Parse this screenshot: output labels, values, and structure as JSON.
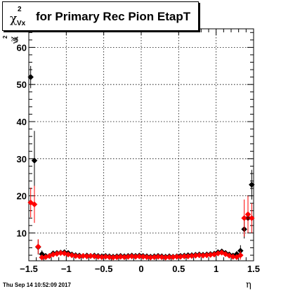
{
  "title": {
    "chi": "χ",
    "sup": "2",
    "sub": "Vx",
    "text": "for Primary Rec Pion EtapT"
  },
  "ylabel": {
    "chi": "χ",
    "sup": "2",
    "sub": "Vx"
  },
  "xlabel": "η",
  "timestamp": "Thu Sep 14 10:52:09 2017",
  "colors": {
    "black_series": "#000000",
    "red_series": "#ff0000"
  },
  "chart_data": {
    "type": "scatter",
    "xlim": [
      -1.5,
      1.5
    ],
    "ylim": [
      2.5,
      65
    ],
    "grid": true,
    "xticks": [
      {
        "value": -1.5,
        "label": "−1.5"
      },
      {
        "value": -1.0,
        "label": "−1"
      },
      {
        "value": -0.5,
        "label": "−0.5"
      },
      {
        "value": 0.0,
        "label": "0"
      },
      {
        "value": 0.5,
        "label": "0.5"
      },
      {
        "value": 1.0,
        "label": "1"
      },
      {
        "value": 1.5,
        "label": "1.5"
      }
    ],
    "yticks": [
      {
        "value": 10,
        "label": "10"
      },
      {
        "value": 20,
        "label": "20"
      },
      {
        "value": 30,
        "label": "30"
      },
      {
        "value": 40,
        "label": "40"
      },
      {
        "value": 50,
        "label": "50"
      },
      {
        "value": 60,
        "label": "60"
      }
    ],
    "series": [
      {
        "color": "#000000",
        "points": [
          {
            "x": -1.475,
            "y": 52,
            "err": 3
          },
          {
            "x": -1.425,
            "y": 29.5,
            "err": 8
          },
          {
            "x": -1.375,
            "y": 6.2,
            "err": 2
          },
          {
            "x": -1.325,
            "y": 4.3,
            "err": 1
          },
          {
            "x": -1.275,
            "y": 3.8,
            "err": 0.5
          },
          {
            "x": -1.225,
            "y": 3.8,
            "err": 0.4
          },
          {
            "x": -1.175,
            "y": 4.5,
            "err": 0.4
          },
          {
            "x": -1.125,
            "y": 4.6,
            "err": 0.4
          },
          {
            "x": -1.075,
            "y": 4.7,
            "err": 0.4
          },
          {
            "x": -1.025,
            "y": 4.8,
            "err": 0.4
          },
          {
            "x": -0.975,
            "y": 4.6,
            "err": 0.3
          },
          {
            "x": -0.925,
            "y": 4.2,
            "err": 0.3
          },
          {
            "x": -0.875,
            "y": 4.0,
            "err": 0.3
          },
          {
            "x": -0.825,
            "y": 3.9,
            "err": 0.3
          },
          {
            "x": -0.775,
            "y": 3.8,
            "err": 0.3
          },
          {
            "x": -0.725,
            "y": 3.9,
            "err": 0.3
          },
          {
            "x": -0.675,
            "y": 3.8,
            "err": 0.3
          },
          {
            "x": -0.625,
            "y": 3.9,
            "err": 0.3
          },
          {
            "x": -0.575,
            "y": 3.8,
            "err": 0.3
          },
          {
            "x": -0.525,
            "y": 3.7,
            "err": 0.3
          },
          {
            "x": -0.475,
            "y": 3.8,
            "err": 0.3
          },
          {
            "x": -0.425,
            "y": 3.7,
            "err": 0.3
          },
          {
            "x": -0.375,
            "y": 3.6,
            "err": 0.3
          },
          {
            "x": -0.325,
            "y": 3.7,
            "err": 0.3
          },
          {
            "x": -0.275,
            "y": 3.8,
            "err": 0.3
          },
          {
            "x": -0.225,
            "y": 3.7,
            "err": 0.3
          },
          {
            "x": -0.175,
            "y": 3.8,
            "err": 0.3
          },
          {
            "x": -0.125,
            "y": 3.9,
            "err": 0.3
          },
          {
            "x": -0.075,
            "y": 3.8,
            "err": 0.3
          },
          {
            "x": -0.025,
            "y": 3.9,
            "err": 0.3
          },
          {
            "x": 0.025,
            "y": 3.8,
            "err": 0.3
          },
          {
            "x": 0.075,
            "y": 3.7,
            "err": 0.3
          },
          {
            "x": 0.125,
            "y": 3.6,
            "err": 0.3
          },
          {
            "x": 0.175,
            "y": 3.7,
            "err": 0.3
          },
          {
            "x": 0.225,
            "y": 3.8,
            "err": 0.3
          },
          {
            "x": 0.275,
            "y": 3.7,
            "err": 0.3
          },
          {
            "x": 0.325,
            "y": 3.6,
            "err": 0.3
          },
          {
            "x": 0.375,
            "y": 3.7,
            "err": 0.3
          },
          {
            "x": 0.425,
            "y": 3.6,
            "err": 0.3
          },
          {
            "x": 0.475,
            "y": 3.7,
            "err": 0.3
          },
          {
            "x": 0.525,
            "y": 3.8,
            "err": 0.3
          },
          {
            "x": 0.575,
            "y": 3.9,
            "err": 0.3
          },
          {
            "x": 0.625,
            "y": 4.0,
            "err": 0.3
          },
          {
            "x": 0.675,
            "y": 4.0,
            "err": 0.3
          },
          {
            "x": 0.725,
            "y": 4.1,
            "err": 0.3
          },
          {
            "x": 0.775,
            "y": 4.2,
            "err": 0.3
          },
          {
            "x": 0.825,
            "y": 4.1,
            "err": 0.3
          },
          {
            "x": 0.875,
            "y": 4.2,
            "err": 0.3
          },
          {
            "x": 0.925,
            "y": 4.3,
            "err": 0.3
          },
          {
            "x": 0.975,
            "y": 4.4,
            "err": 0.3
          },
          {
            "x": 1.025,
            "y": 4.8,
            "err": 0.4
          },
          {
            "x": 1.075,
            "y": 5.0,
            "err": 0.4
          },
          {
            "x": 1.125,
            "y": 4.6,
            "err": 0.4
          },
          {
            "x": 1.175,
            "y": 4.2,
            "err": 0.4
          },
          {
            "x": 1.225,
            "y": 3.9,
            "err": 0.5
          },
          {
            "x": 1.275,
            "y": 4.3,
            "err": 0.8
          },
          {
            "x": 1.325,
            "y": 5.2,
            "err": 1.5
          },
          {
            "x": 1.375,
            "y": 11,
            "err": 2.5
          },
          {
            "x": 1.425,
            "y": 14,
            "err": 4
          },
          {
            "x": 1.475,
            "y": 23,
            "err": 4
          }
        ]
      },
      {
        "color": "#ff0000",
        "points": [
          {
            "x": -1.475,
            "y": 18.2,
            "err": 4
          },
          {
            "x": -1.425,
            "y": 17.7,
            "err": 5
          },
          {
            "x": -1.375,
            "y": 6.3,
            "err": 2
          },
          {
            "x": -1.325,
            "y": 3.4,
            "err": 0.6
          },
          {
            "x": -1.275,
            "y": 3.5,
            "err": 0.5
          },
          {
            "x": -1.225,
            "y": 3.8,
            "err": 0.4
          },
          {
            "x": -1.175,
            "y": 4.2,
            "err": 0.4
          },
          {
            "x": -1.125,
            "y": 4.4,
            "err": 0.4
          },
          {
            "x": -1.075,
            "y": 4.6,
            "err": 0.4
          },
          {
            "x": -1.025,
            "y": 4.5,
            "err": 0.4
          },
          {
            "x": -0.975,
            "y": 4.2,
            "err": 0.3
          },
          {
            "x": -0.925,
            "y": 4.0,
            "err": 0.3
          },
          {
            "x": -0.875,
            "y": 3.8,
            "err": 0.3
          },
          {
            "x": -0.825,
            "y": 3.7,
            "err": 0.3
          },
          {
            "x": -0.775,
            "y": 3.8,
            "err": 0.3
          },
          {
            "x": -0.725,
            "y": 3.7,
            "err": 0.3
          },
          {
            "x": -0.675,
            "y": 3.8,
            "err": 0.3
          },
          {
            "x": -0.625,
            "y": 3.7,
            "err": 0.3
          },
          {
            "x": -0.575,
            "y": 3.6,
            "err": 0.3
          },
          {
            "x": -0.525,
            "y": 3.5,
            "err": 0.3
          },
          {
            "x": -0.475,
            "y": 3.6,
            "err": 0.3
          },
          {
            "x": -0.425,
            "y": 3.5,
            "err": 0.3
          },
          {
            "x": -0.375,
            "y": 3.4,
            "err": 0.3
          },
          {
            "x": -0.325,
            "y": 3.5,
            "err": 0.3
          },
          {
            "x": -0.275,
            "y": 3.6,
            "err": 0.3
          },
          {
            "x": -0.225,
            "y": 3.5,
            "err": 0.3
          },
          {
            "x": -0.175,
            "y": 3.6,
            "err": 0.3
          },
          {
            "x": -0.125,
            "y": 3.7,
            "err": 0.3
          },
          {
            "x": -0.075,
            "y": 3.6,
            "err": 0.3
          },
          {
            "x": -0.025,
            "y": 3.7,
            "err": 0.3
          },
          {
            "x": 0.025,
            "y": 3.6,
            "err": 0.3
          },
          {
            "x": 0.075,
            "y": 3.5,
            "err": 0.3
          },
          {
            "x": 0.125,
            "y": 3.4,
            "err": 0.3
          },
          {
            "x": 0.175,
            "y": 3.5,
            "err": 0.3
          },
          {
            "x": 0.225,
            "y": 3.6,
            "err": 0.3
          },
          {
            "x": 0.275,
            "y": 3.5,
            "err": 0.3
          },
          {
            "x": 0.325,
            "y": 3.4,
            "err": 0.3
          },
          {
            "x": 0.375,
            "y": 3.5,
            "err": 0.3
          },
          {
            "x": 0.425,
            "y": 3.5,
            "err": 0.3
          },
          {
            "x": 0.475,
            "y": 3.6,
            "err": 0.3
          },
          {
            "x": 0.525,
            "y": 3.6,
            "err": 0.3
          },
          {
            "x": 0.575,
            "y": 3.7,
            "err": 0.3
          },
          {
            "x": 0.625,
            "y": 3.7,
            "err": 0.3
          },
          {
            "x": 0.675,
            "y": 3.8,
            "err": 0.3
          },
          {
            "x": 0.725,
            "y": 3.9,
            "err": 0.3
          },
          {
            "x": 0.775,
            "y": 4.0,
            "err": 0.3
          },
          {
            "x": 0.825,
            "y": 3.9,
            "err": 0.3
          },
          {
            "x": 0.875,
            "y": 4.0,
            "err": 0.3
          },
          {
            "x": 0.925,
            "y": 4.1,
            "err": 0.3
          },
          {
            "x": 0.975,
            "y": 4.2,
            "err": 0.3
          },
          {
            "x": 1.025,
            "y": 4.5,
            "err": 0.4
          },
          {
            "x": 1.075,
            "y": 4.7,
            "err": 0.4
          },
          {
            "x": 1.125,
            "y": 4.3,
            "err": 0.4
          },
          {
            "x": 1.175,
            "y": 3.9,
            "err": 0.4
          },
          {
            "x": 1.225,
            "y": 3.6,
            "err": 0.5
          },
          {
            "x": 1.275,
            "y": 3.5,
            "err": 0.7
          },
          {
            "x": 1.325,
            "y": 4.0,
            "err": 1.2
          },
          {
            "x": 1.375,
            "y": 14,
            "err": 5
          },
          {
            "x": 1.425,
            "y": 15,
            "err": 5
          },
          {
            "x": 1.475,
            "y": 14,
            "err": 4
          }
        ]
      }
    ]
  }
}
